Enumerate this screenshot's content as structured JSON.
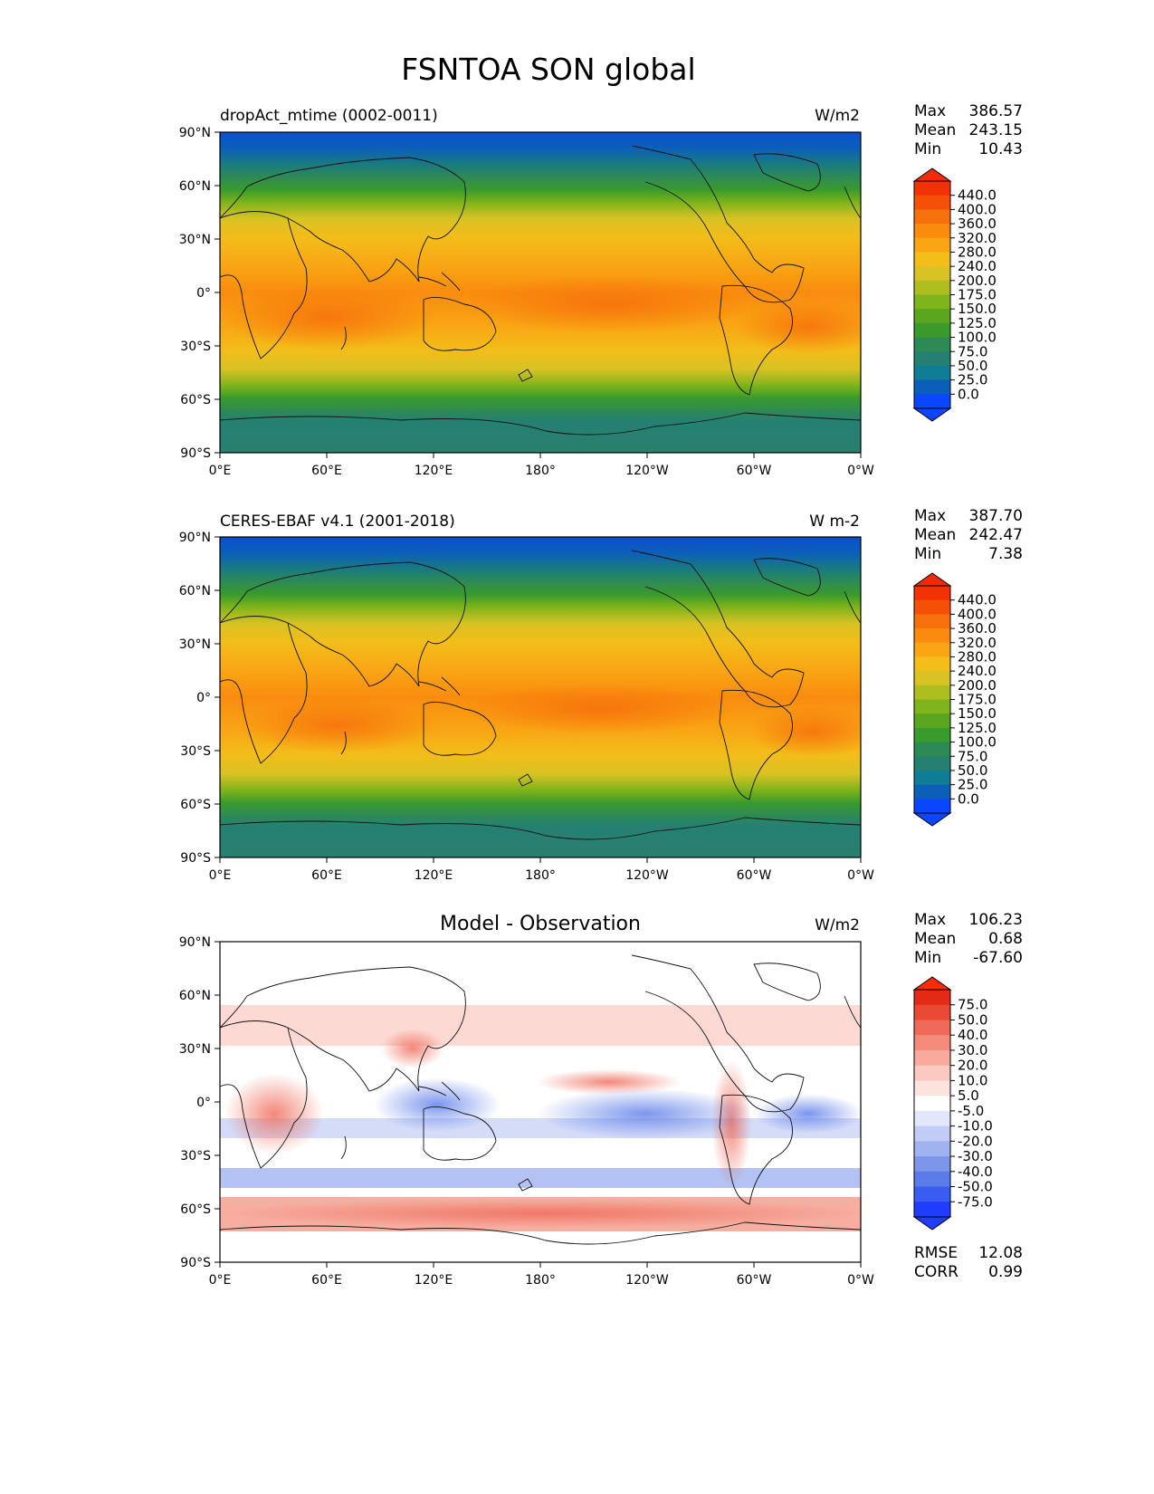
{
  "title": "FSNTOA SON global",
  "axes": {
    "lat_ticks": [
      "90°N",
      "60°N",
      "30°N",
      "0°",
      "30°S",
      "60°S",
      "90°S"
    ],
    "lon_ticks": [
      "0°E",
      "60°E",
      "120°E",
      "180°",
      "120°W",
      "60°W",
      "0°W"
    ]
  },
  "panels": [
    {
      "label": "dropAct_mtime (0002-0011)",
      "units": "W/m2",
      "stats": [
        {
          "name": "Max",
          "value": "386.57"
        },
        {
          "name": "Mean",
          "value": "243.15"
        },
        {
          "name": "Min",
          "value": "10.43"
        }
      ],
      "colorbar": {
        "levels": [
          "0.0",
          "25.0",
          "50.0",
          "75.0",
          "100.0",
          "125.0",
          "150.0",
          "175.0",
          "200.0",
          "240.0",
          "280.0",
          "320.0",
          "360.0",
          "400.0",
          "440.0"
        ],
        "colors": [
          "#0a45ff",
          "#0b5fb8",
          "#0f7d95",
          "#258072",
          "#2e8a55",
          "#3a9a2c",
          "#5aa61e",
          "#7fb41b",
          "#aebe1f",
          "#d8c224",
          "#f3bd1a",
          "#f9a514",
          "#f98c0e",
          "#f6700b",
          "#f45007",
          "#f13206"
        ],
        "under": "#0a45ff",
        "over": "#f42a06"
      }
    },
    {
      "label": "CERES-EBAF v4.1 (2001-2018)",
      "units": "W m-2",
      "stats": [
        {
          "name": "Max",
          "value": "387.70"
        },
        {
          "name": "Mean",
          "value": "242.47"
        },
        {
          "name": "Min",
          "value": "7.38"
        }
      ],
      "colorbar": {
        "levels": [
          "0.0",
          "25.0",
          "50.0",
          "75.0",
          "100.0",
          "125.0",
          "150.0",
          "175.0",
          "200.0",
          "240.0",
          "280.0",
          "320.0",
          "360.0",
          "400.0",
          "440.0"
        ],
        "colors": [
          "#0a45ff",
          "#0b5fb8",
          "#0f7d95",
          "#258072",
          "#2e8a55",
          "#3a9a2c",
          "#5aa61e",
          "#7fb41b",
          "#aebe1f",
          "#d8c224",
          "#f3bd1a",
          "#f9a514",
          "#f98c0e",
          "#f6700b",
          "#f45007",
          "#f13206"
        ],
        "under": "#0a45ff",
        "over": "#f42a06"
      }
    },
    {
      "label": "",
      "heading": "Model - Observation",
      "units": "W/m2",
      "stats": [
        {
          "name": "Max",
          "value": "106.23"
        },
        {
          "name": "Mean",
          "value": "0.68"
        },
        {
          "name": "Min",
          "value": "-67.60"
        }
      ],
      "extra_stats": [
        {
          "name": "RMSE",
          "value": "12.08"
        },
        {
          "name": "CORR",
          "value": "0.99"
        }
      ],
      "colorbar": {
        "levels": [
          "-75.0",
          "-50.0",
          "-40.0",
          "-30.0",
          "-20.0",
          "-10.0",
          "-5.0",
          "5.0",
          "10.0",
          "20.0",
          "30.0",
          "40.0",
          "50.0",
          "75.0"
        ],
        "colors": [
          "#1f3cff",
          "#3a5cf0",
          "#5b7be8",
          "#7d96ea",
          "#a0b2f0",
          "#c2cdf5",
          "#e2e7fb",
          "#ffffff",
          "#fde3de",
          "#fbc9bf",
          "#f8aa9c",
          "#f48a7a",
          "#ef6a58",
          "#e94a36",
          "#e32a14"
        ],
        "under": "#1f3cff",
        "over": "#ff2a0a"
      }
    }
  ]
}
